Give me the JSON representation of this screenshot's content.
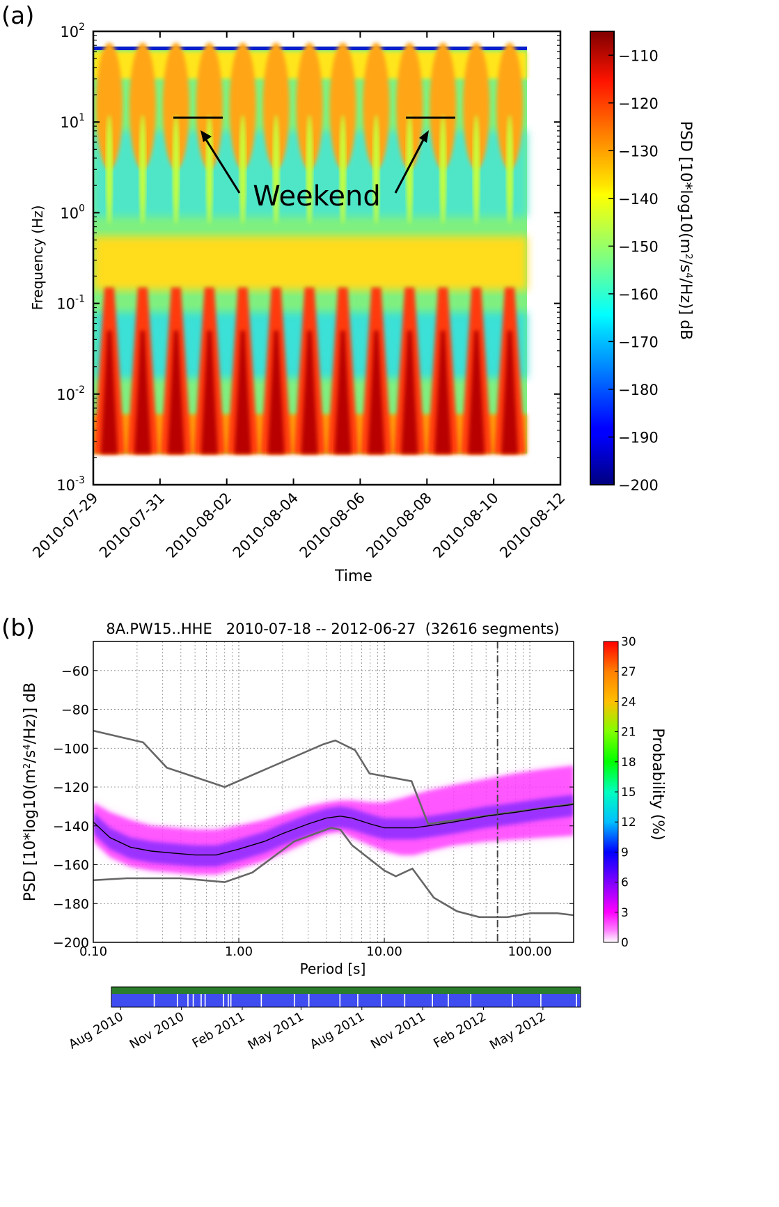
{
  "panels": {
    "a": {
      "label": "(a)",
      "annotation": "Weekend"
    },
    "b": {
      "label": "(b)"
    }
  },
  "chart_data": [
    {
      "type": "heatmap",
      "panel": "(a)",
      "title": "",
      "xlabel": "Time",
      "ylabel": "Frequency (Hz)",
      "x_ticks": [
        "2010-07-29",
        "2010-07-31",
        "2010-08-02",
        "2010-08-04",
        "2010-08-06",
        "2010-08-08",
        "2010-08-10",
        "2010-08-12"
      ],
      "x_range": [
        "2010-07-29",
        "2010-08-12"
      ],
      "data_x_range": [
        "2010-07-29",
        "2010-08-11"
      ],
      "y_scale": "log",
      "y_range": [
        0.001,
        100
      ],
      "data_y_range": [
        0.0022,
        68
      ],
      "y_ticks": [
        {
          "value": 0.001,
          "label_base": "10",
          "label_exp": "-3"
        },
        {
          "value": 0.01,
          "label_base": "10",
          "label_exp": "-2"
        },
        {
          "value": 0.1,
          "label_base": "10",
          "label_exp": "-1"
        },
        {
          "value": 1,
          "label_base": "10",
          "label_exp": "0"
        },
        {
          "value": 10,
          "label_base": "10",
          "label_exp": "1"
        },
        {
          "value": 100,
          "label_base": "10",
          "label_exp": "2"
        }
      ],
      "colorbar": {
        "label_parts": [
          "PSD [10*log10(m",
          "2",
          "/s",
          "4",
          "/Hz)] dB"
        ],
        "range": [
          -200,
          -105
        ],
        "ticks": [
          -110,
          -120,
          -130,
          -140,
          -150,
          -160,
          -170,
          -180,
          -190,
          -200
        ],
        "colormap": "jet"
      },
      "annotations": [
        {
          "text": "Weekend",
          "segments": [
            [
              "2010-07-31T12:00",
              "2010-08-01T23:00"
            ],
            [
              "2010-08-07T12:00",
              "2010-08-08T23:00"
            ]
          ],
          "freq_hz": 11
        }
      ],
      "daily_noise_peaks": [
        "2010-07-29",
        "2010-07-30",
        "2010-07-31",
        "2010-08-01",
        "2010-08-02",
        "2010-08-03",
        "2010-08-04",
        "2010-08-05",
        "2010-08-06",
        "2010-08-07",
        "2010-08-08",
        "2010-08-09",
        "2010-08-10"
      ]
    },
    {
      "type": "line",
      "panel": "(b)",
      "title": "8A.PW15..HHE   2010-07-18 -- 2012-06-27  (32616 segments)",
      "xlabel": "Period [s]",
      "ylabel_parts": [
        "PSD [10*log10(m",
        "2",
        "/s",
        "4",
        "/Hz)] dB"
      ],
      "x_scale": "log",
      "xlim": [
        0.1,
        200
      ],
      "x_ticks": [
        {
          "value": 0.1,
          "label": "0.10"
        },
        {
          "value": 1,
          "label": "1.00"
        },
        {
          "value": 10,
          "label": "10.00"
        },
        {
          "value": 100,
          "label": "100.00"
        }
      ],
      "ylim": [
        -200,
        -45
      ],
      "y_ticks": [
        -60,
        -80,
        -100,
        -120,
        -140,
        -160,
        -180,
        -200
      ],
      "grid": true,
      "vertical_line_period_s": 60,
      "series": [
        {
          "role": "high-noise-model",
          "color": "#666666",
          "x": [
            0.1,
            0.22,
            0.32,
            0.8,
            3.8,
            4.6,
            6.3,
            7.9,
            15.4,
            20,
            354.8
          ],
          "y": [
            -91,
            -97,
            -110,
            -120,
            -98,
            -96,
            -101,
            -113,
            -117,
            -139,
            -126
          ]
        },
        {
          "role": "low-noise-model",
          "color": "#666666",
          "x": [
            0.1,
            0.17,
            0.4,
            0.8,
            1.24,
            2.4,
            4.3,
            5,
            6,
            10,
            12,
            15.6,
            21.9,
            31.6,
            45,
            70,
            101,
            154,
            200
          ],
          "y": [
            -168,
            -167,
            -167,
            -169,
            -164,
            -148,
            -141,
            -142,
            -150,
            -163,
            -166,
            -162,
            -177,
            -184,
            -187,
            -187,
            -185,
            -185,
            -186
          ]
        },
        {
          "role": "mode",
          "color": "#000000",
          "x": [
            0.1,
            0.13,
            0.18,
            0.25,
            0.35,
            0.5,
            0.7,
            1,
            1.5,
            2,
            3,
            4,
            5,
            6,
            8,
            10,
            13,
            16,
            20,
            30,
            50,
            80,
            120,
            200
          ],
          "y": [
            -138,
            -146,
            -151,
            -153,
            -154,
            -155,
            -155,
            -152,
            -148,
            -144,
            -139,
            -136,
            -135,
            -136,
            -139,
            -141,
            -141,
            -141,
            -140,
            -138,
            -135,
            -133,
            -131,
            -129
          ]
        }
      ],
      "pdf_band": {
        "x": [
          0.1,
          0.13,
          0.18,
          0.25,
          0.35,
          0.5,
          0.7,
          1,
          1.5,
          2,
          3,
          4,
          5,
          6,
          8,
          10,
          13,
          16,
          20,
          30,
          50,
          80,
          120,
          200
        ],
        "upper": [
          -128,
          -133,
          -137,
          -140,
          -141,
          -142,
          -142,
          -140,
          -137,
          -134,
          -130,
          -128,
          -127,
          -127,
          -128,
          -128,
          -126,
          -124,
          -122,
          -119,
          -116,
          -113,
          -111,
          -109
        ],
        "lower": [
          -148,
          -156,
          -161,
          -163,
          -164,
          -165,
          -165,
          -162,
          -158,
          -154,
          -148,
          -144,
          -143,
          -146,
          -150,
          -153,
          -155,
          -155,
          -153,
          -150,
          -148,
          -147,
          -146,
          -145
        ]
      },
      "colorbar": {
        "label": "Probability (%)",
        "range": [
          0,
          30
        ],
        "ticks": [
          0,
          3,
          6,
          9,
          12,
          15,
          18,
          21,
          24,
          27,
          30
        ]
      },
      "coverage": {
        "type": "timeline",
        "x_ticks": [
          "Aug 2010",
          "Nov 2010",
          "Feb 2011",
          "May 2011",
          "Aug 2011",
          "Nov 2011",
          "Feb 2012",
          "May 2012"
        ],
        "range": [
          "2010-07-18",
          "2012-06-27"
        ],
        "colors": {
          "data": "#2a7d2a",
          "segments": "#3f4cf0"
        },
        "gap_dates": [
          "2010-09-20",
          "2010-10-25",
          "2010-11-10",
          "2010-11-18",
          "2010-11-30",
          "2010-12-06",
          "2011-01-03",
          "2011-01-10",
          "2011-01-14",
          "2011-03-01",
          "2011-04-20",
          "2011-05-12",
          "2011-06-28",
          "2011-07-25",
          "2011-08-30",
          "2011-10-04",
          "2011-11-15",
          "2011-12-09",
          "2012-01-12",
          "2012-03-15",
          "2012-04-27",
          "2012-06-20"
        ]
      }
    }
  ]
}
